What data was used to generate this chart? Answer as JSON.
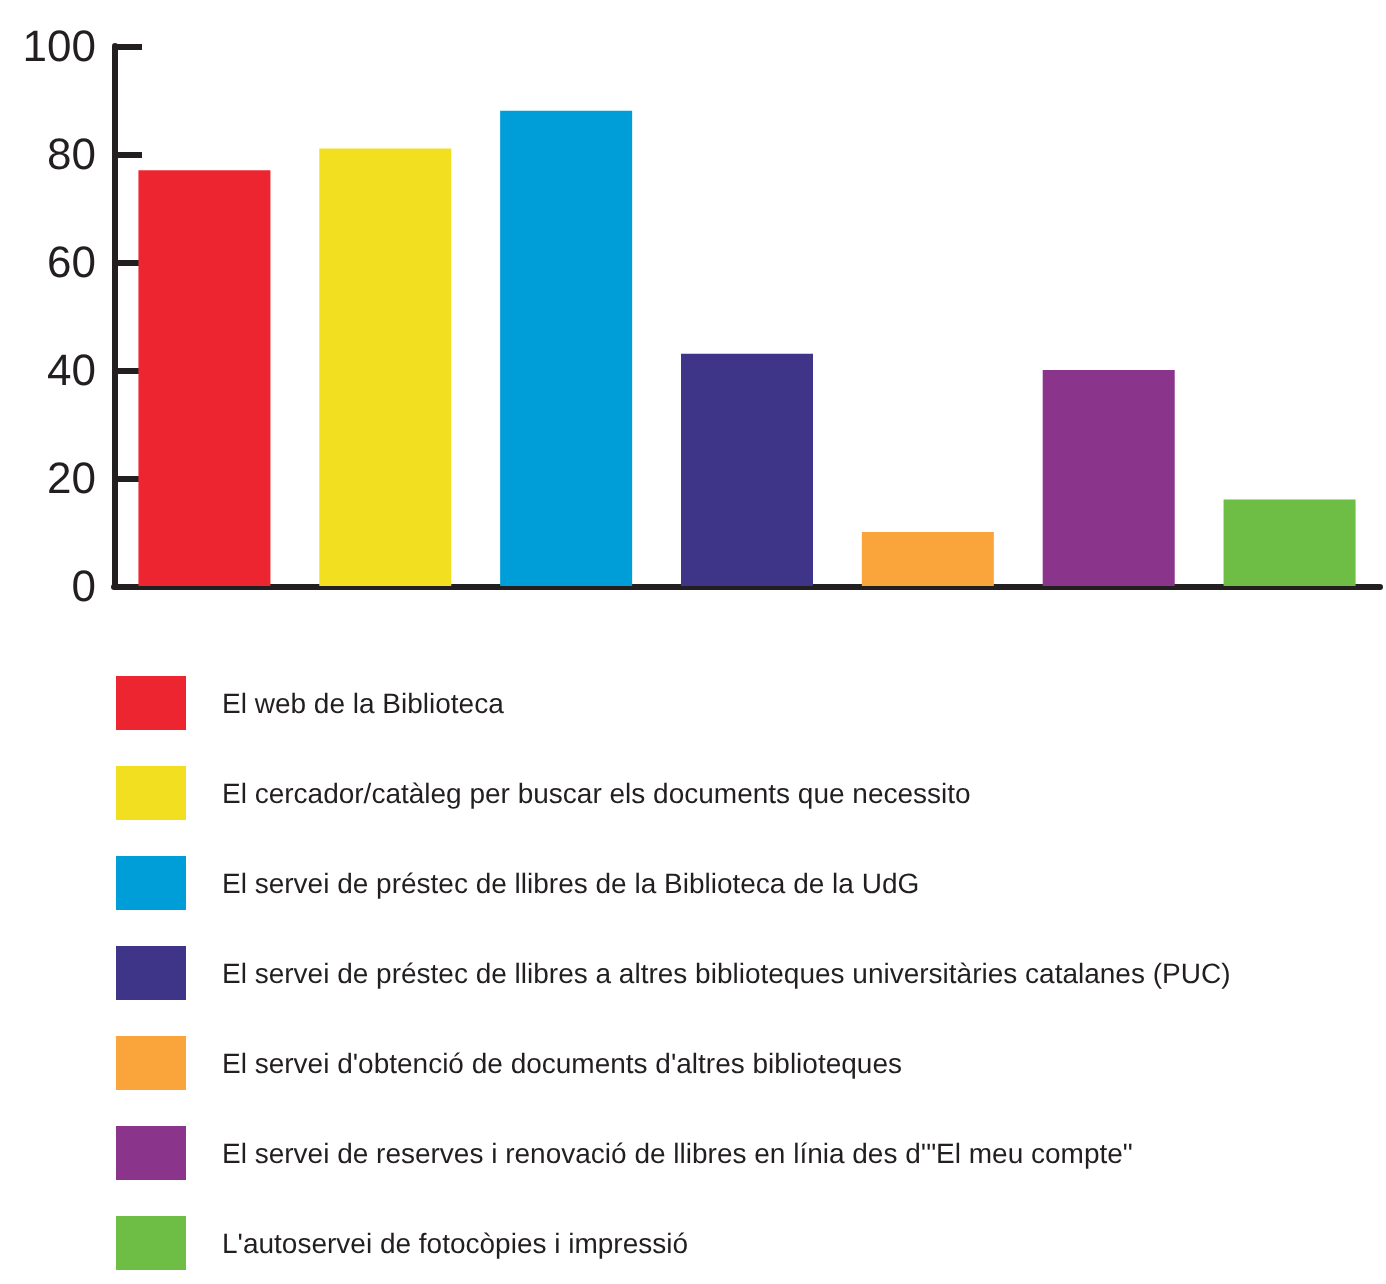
{
  "chart_data": {
    "type": "bar",
    "categories": [
      null,
      null,
      null,
      null,
      null,
      null,
      null
    ],
    "series": [
      {
        "name": "El web de la Biblioteca",
        "color": "#ed2530",
        "values": [
          77,
          null,
          null,
          null,
          null,
          null,
          null
        ]
      },
      {
        "name": "El cercador/catàleg per buscar els documents que necessito",
        "color": "#f2df1f",
        "values": [
          null,
          81,
          null,
          null,
          null,
          null,
          null
        ]
      },
      {
        "name": "El servei de préstec de llibres de la Biblioteca de la UdG",
        "color": "#009ed8",
        "values": [
          null,
          null,
          88,
          null,
          null,
          null,
          null
        ]
      },
      {
        "name": "El servei de préstec de llibres a altres biblioteques universitàries catalanes (PUC)",
        "color": "#3e3589",
        "values": [
          null,
          null,
          null,
          43,
          null,
          null,
          null
        ]
      },
      {
        "name": "El servei d'obtenció de documents d'altres biblioteques",
        "color": "#f9a53b",
        "values": [
          null,
          null,
          null,
          null,
          10,
          null,
          null
        ]
      },
      {
        "name": "El servei de reserves i renovació de llibres en línia des d'\"El meu compte\"",
        "color": "#8b348b",
        "values": [
          null,
          null,
          null,
          null,
          null,
          40,
          null
        ]
      },
      {
        "name": "L'autoservei de fotocòpies i impressió",
        "color": "#6ebd45",
        "values": [
          null,
          null,
          null,
          null,
          null,
          null,
          16
        ]
      }
    ],
    "ylim": [
      0,
      100
    ],
    "yticks": [
      0,
      20,
      40,
      60,
      80,
      100
    ],
    "tick_labels": "y",
    "legend": "bottom"
  }
}
